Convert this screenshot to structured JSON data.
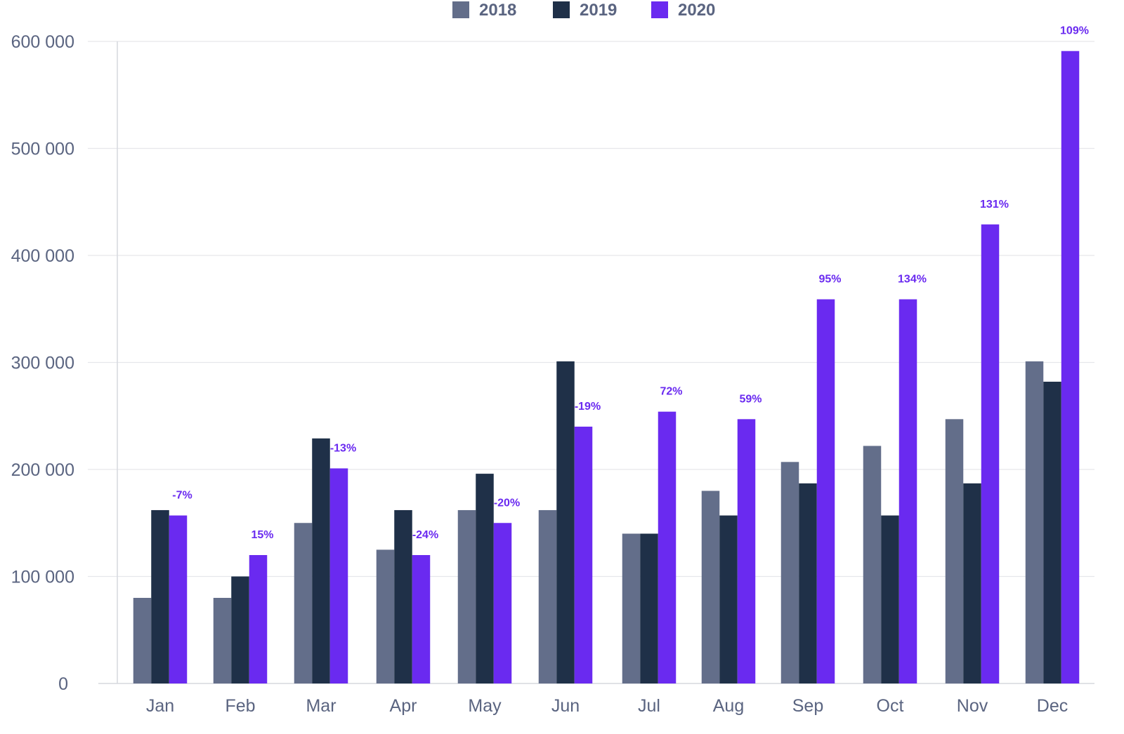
{
  "chart_data": {
    "type": "bar",
    "categories": [
      "Jan",
      "Feb",
      "Mar",
      "Apr",
      "May",
      "Jun",
      "Jul",
      "Aug",
      "Sep",
      "Oct",
      "Nov",
      "Dec"
    ],
    "series": [
      {
        "name": "2018",
        "color": "#636e8a",
        "values": [
          80000,
          80000,
          150000,
          125000,
          162000,
          162000,
          140000,
          180000,
          207000,
          222000,
          247000,
          301000
        ]
      },
      {
        "name": "2019",
        "color": "#1f3048",
        "values": [
          162000,
          100000,
          229000,
          162000,
          196000,
          301000,
          140000,
          157000,
          187000,
          157000,
          187000,
          282000
        ]
      },
      {
        "name": "2020",
        "color": "#6a2af0",
        "values": [
          157000,
          120000,
          201000,
          120000,
          150000,
          240000,
          254000,
          247000,
          359000,
          359000,
          429000,
          591000
        ]
      }
    ],
    "annotations": [
      "-7%",
      "15%",
      "-13%",
      "-24%",
      "-20%",
      "-19%",
      "72%",
      "59%",
      "95%",
      "134%",
      "131%",
      "109%"
    ],
    "yticks": [
      0,
      100000,
      200000,
      300000,
      400000,
      500000,
      600000
    ],
    "ytick_labels": [
      "0",
      "100 000",
      "200 000",
      "300 000",
      "400 000",
      "500 000",
      "600 000"
    ],
    "ylim": [
      0,
      600000
    ],
    "grid": true,
    "legend_position": "top-center",
    "title": "",
    "xlabel": "",
    "ylabel": "",
    "colors": {
      "axis": "#d6d8de",
      "grid": "#e6e7eb",
      "tick_text": "#5a6480",
      "annotation": "#6a2af0"
    }
  }
}
